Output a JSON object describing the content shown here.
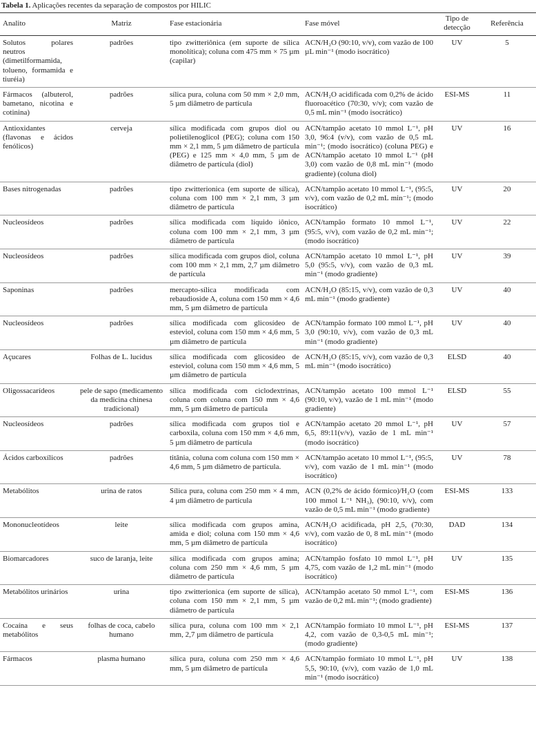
{
  "caption": {
    "label": "Tabela 1.",
    "text": "Aplicações recentes da separação de compostos por HILIC"
  },
  "table": {
    "header": [
      "Analito",
      "Matriz",
      "Fase estacionária",
      "Fase móvel",
      "Tipo de detecção",
      "Referência"
    ],
    "rows": [
      [
        "Solutos polares neutros (dimetilformamida, tolueno, formamida e tiuréia)",
        "padrões",
        "tipo zwitteriônica (em suporte de sílica monolítica); coluna com 475 mm × 75 µm (capilar)",
        "ACN/H₂O (90:10, v/v), com vazão de 100 µL min⁻¹ (modo isocrático)",
        "UV",
        5
      ],
      [
        "Fármacos (albuterol, bametano, nicotina e cotinina)",
        "padrões",
        "sílica pura, coluna com 50 mm × 2,0 mm, 5 µm diâmetro de partícula",
        "ACN/H₂O acidificada com 0,2% de ácido fluoroacético (70:30, v/v); com vazão de 0,5 mL min⁻¹ (modo isocrático)",
        "ESI-MS",
        11
      ],
      [
        "Antioxidantes (flavonas e ácidos fenólicos)",
        "cerveja",
        "sílica modificada com grupos diol ou polietilenoglicol (PEG); coluna com 150 mm × 2,1 mm, 5 µm diâmetro de partícula (PEG) e 125 mm × 4,0 mm, 5 µm de diâmetro de partícula (diol)",
        "ACN/tampão acetato 10 mmol L⁻¹, pH 3,0, 96:4 (v/v), com vazão de 0,5 mL min⁻¹; (modo isocrático) (coluna PEG) e ACN/tampão acetato 10 mmol L⁻¹ (pH 3,0) com vazão de 0,8 mL min⁻¹ (modo gradiente) (coluna diol)",
        "UV",
        16
      ],
      [
        "Bases nitrogenadas",
        "padrões",
        "tipo zwitterionica (em suporte de sílica), coluna com 100 mm × 2,1 mm, 3 µm diâmetro de partícula",
        "ACN/tampão acetato 10 mmol L⁻¹, (95:5, v/v), com vazão de 0,2 mL min⁻¹; (modo isocrático)",
        "UV",
        20
      ],
      [
        "Nucleosídeos",
        "padrões",
        "sílica modificada com líquido iônico, coluna com 100 mm × 2,1 mm, 3 µm diâmetro de partícula",
        "ACN/tampão formato 10 mmol L⁻¹, (95:5, v/v), com vazão de 0,2 mL min⁻¹; (modo isocrático)",
        "UV",
        22
      ],
      [
        "Nucleosídeos",
        "padrões",
        "sílica modificada com grupos diol, coluna com 100 mm × 2,1 mm, 2,7 µm diâmetro de partícula",
        "ACN/tampão acetato 10 mmol L⁻¹, pH 5,0 (95:5, v/v), com vazão de 0,3 mL min⁻¹ (modo gradiente)",
        "UV",
        39
      ],
      [
        "Saponinas",
        "padrões",
        "mercapto-sílica modificada com rebaudioside A, coluna com 150 mm × 4,6 mm, 5 µm diâmetro de partícula",
        "ACN/H₂O (85:15, v/v), com vazão de 0,3 mL min⁻¹ (modo gradiente)",
        "UV",
        40
      ],
      [
        "Nucleosídeos",
        "padrões",
        "sílica modificada com glicosídeo de esteviol, coluna com 150 mm × 4,6 mm, 5 µm diâmetro de partícula",
        "ACN/tampão formato 100 mmol L⁻¹, pH 3,0 (90:10, v/v), com vazão de 0,3 mL min⁻¹ (modo gradiente)",
        "UV",
        40
      ],
      [
        "Açucares",
        "Folhas de L. lucidus",
        "sílica modificada com glicosídeo de esteviol, coluna com 150 mm × 4,6 mm, 5 µm diâmetro de partícula",
        "ACN/H₂O (85:15, v/v), com vazão de 0,3 mL min⁻¹ (modo isocrático)",
        "ELSD",
        40
      ],
      [
        "Oligossacarídeos",
        "pele de sapo (medicamento da medicina chinesa tradicional)",
        "sílica modificada com ciclodextrinas, coluna com coluna com 150 mm × 4,6 mm, 5 µm diâmetro de partícula",
        "ACN/tampão acetato 100 mmol L⁻¹ (90:10, v/v), vazão de 1 mL min⁻¹ (modo gradiente)",
        "ELSD",
        55
      ],
      [
        "Nucleosídeos",
        "padrões",
        "sílica modificada com grupos tiol e carboxila, coluna com 150 mm × 4,6 mm, 5 µm diâmetro de partícula",
        "ACN/tampão acetato 20 mmol L⁻¹, pH 6,5, 89:11(v/v), vazão de 1 mL min⁻¹ (modo isocrático)",
        "UV",
        57
      ],
      [
        "Ácidos carboxílicos",
        "padrões",
        "titânia, coluna com coluna com 150 mm × 4,6 mm, 5 µm diâmetro de partícula.",
        "ACN/tampão acetato 10 mmol L⁻¹, (95:5, v/v), com vazão de 1 mL min⁻¹ (modo isocrático)",
        "UV",
        78
      ],
      [
        "Metabólitos",
        "urina de ratos",
        "Sílica pura, coluna com 250 mm × 4 mm, 4 µm diâmetro de partícula",
        "ACN (0,2% de ácido fórmico)/H₂O (com 100 mmol L⁻¹ NH₃), (90:10, v/v), com vazão de 0,5 mL min⁻¹ (modo gradiente)",
        "ESI-MS",
        133
      ],
      [
        "Mononucleotídeos",
        "leite",
        "sílica modificada com grupos amina, amida e diol; coluna com 150 mm × 4,6 mm, 5 µm diâmetro de partícula",
        "ACN/H₂O acidificada, pH 2,5, (70:30, v/v), com vazão de 0, 8 mL min⁻¹ (modo isocrático)",
        "DAD",
        134
      ],
      [
        "Biomarcadores",
        "suco de laranja, leite",
        "sílica modificada com grupos amina; coluna com 250 mm × 4,6 mm, 5 µm diâmetro de partícula",
        "ACN/tampão fosfato 10 mmol L⁻¹, pH 4,75, com vazão de 1,2 mL min⁻¹ (modo isocrático)",
        "UV",
        135
      ],
      [
        "Metabólitos urinários",
        "urina",
        "tipo zwitterionica (em suporte de sílica), coluna com 150 mm × 2,1 mm, 5 µm diâmetro de partícula",
        "ACN/tampão acetato 50 mmol L⁻¹, com vazão de 0,2 mL min⁻¹; (modo gradiente)",
        "ESI-MS",
        136
      ],
      [
        "Cocaína e seus metabólitos",
        "folhas de coca, cabelo humano",
        "sílica pura, coluna com 100 mm × 2,1 mm, 2,7 µm diâmetro de partícula",
        "ACN/tampão formiato 10 mmol L⁻¹, pH 4,2, com vazão de 0,3-0,5 mL min⁻¹; (modo gradiente)",
        "ESI-MS",
        137
      ],
      [
        "Fármacos",
        "plasma humano",
        "sílica pura, coluna com 250 mm × 4,6 mm, 5 µm diâmetro de partícula",
        "ACN/tampão formiato 10 mmol L⁻¹, pH 5,5, 90:10, (v/v), com vazão de 1,0 mL min⁻¹ (modo isocrático)",
        "UV",
        138
      ]
    ]
  }
}
